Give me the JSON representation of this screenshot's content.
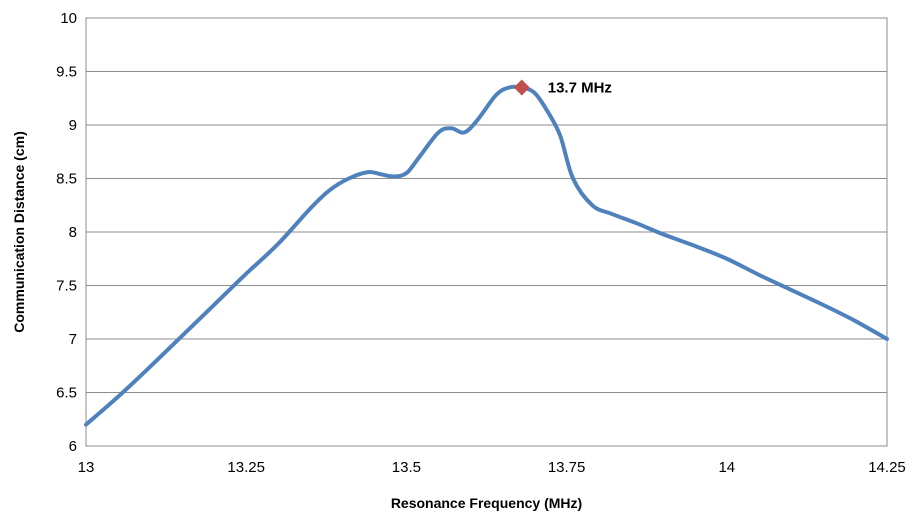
{
  "chart_data": {
    "type": "line",
    "xlabel": "Resonance Frequency (MHz)",
    "ylabel": "Communication Distance (cm)",
    "xlim": [
      13,
      14.25
    ],
    "ylim": [
      6,
      10
    ],
    "x_ticks": [
      "13",
      "13.25",
      "13.5",
      "13.75",
      "14",
      "14.25"
    ],
    "y_ticks": [
      "6",
      "6.5",
      "7",
      "7.5",
      "8",
      "8.5",
      "9",
      "9.5",
      "10"
    ],
    "grid": "horizontal",
    "series": [
      {
        "color": "#4f81bd",
        "x": [
          13.0,
          13.05,
          13.1,
          13.15,
          13.2,
          13.25,
          13.3,
          13.35,
          13.38,
          13.41,
          13.44,
          13.46,
          13.48,
          13.5,
          13.52,
          13.55,
          13.57,
          13.59,
          13.61,
          13.64,
          13.66,
          13.68,
          13.7,
          13.72,
          13.74,
          13.76,
          13.79,
          13.82,
          13.86,
          13.9,
          13.95,
          14.0,
          14.05,
          14.1,
          14.15,
          14.2,
          14.25
        ],
        "y": [
          6.2,
          6.46,
          6.74,
          7.03,
          7.32,
          7.61,
          7.89,
          8.22,
          8.39,
          8.5,
          8.56,
          8.54,
          8.52,
          8.55,
          8.7,
          8.93,
          8.97,
          8.93,
          9.04,
          9.28,
          9.35,
          9.35,
          9.3,
          9.13,
          8.9,
          8.5,
          8.25,
          8.17,
          8.08,
          7.98,
          7.87,
          7.75,
          7.6,
          7.46,
          7.32,
          7.17,
          7.0
        ]
      }
    ],
    "annotation": {
      "label": "13.7 MHz",
      "x": 13.68,
      "y": 9.35,
      "marker": "diamond",
      "color": "#c0504d"
    }
  }
}
